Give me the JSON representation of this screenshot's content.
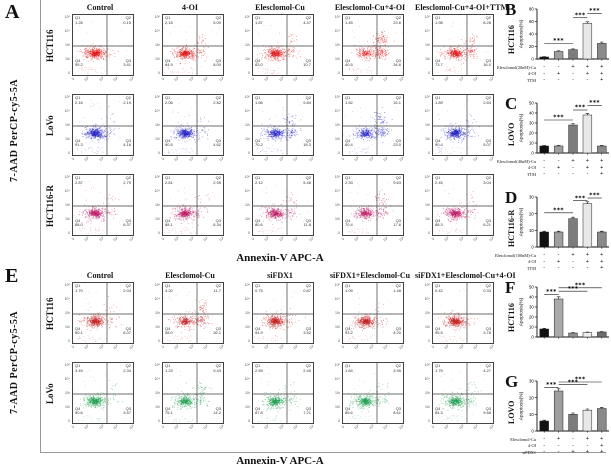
{
  "flow_axis": {
    "x": [
      "0",
      "10²",
      "10³",
      "10⁴",
      "10⁵"
    ],
    "y": [
      "10⁵",
      "10⁴",
      "10³",
      "10²",
      "0"
    ]
  },
  "quadrant_names": {
    "q1": "Q1",
    "q2": "Q2",
    "q3": "Q3",
    "q4": "Q4"
  },
  "panelA": {
    "letter": "A",
    "y_label": "7-AAD PerCP-cy5-5A",
    "x_label": "Annexin-V APC-A",
    "columns": [
      "Control",
      "4-OI",
      "Elesclomol-Cu",
      "Elesclomol-Cu+4-OI",
      "Elesclomol-Cu+4-OI+TTM"
    ],
    "rows": [
      {
        "label": "HCT116",
        "color": "#dd1414",
        "plots": [
          {
            "q1": "1.28",
            "q2": "0.15",
            "q3": "3.41",
            "q4": "95.2"
          },
          {
            "q1": "2.16",
            "q2": "5.00",
            "q3": "8.00",
            "q4": "84.9"
          },
          {
            "q1": "1.87",
            "q2": "4.47",
            "q3": "10.7",
            "q4": "83.0"
          },
          {
            "q1": "1.45",
            "q2": "23.6",
            "q3": "34.6",
            "q4": "40.5"
          },
          {
            "q1": "1.98",
            "q2": "8.28",
            "q3": "16.0",
            "q4": "73.7"
          }
        ]
      },
      {
        "label": "LoVo",
        "color": "#2222c4",
        "plots": [
          {
            "q1": "2.16",
            "q2": "2.19",
            "q3": "4.16",
            "q4": "91.3"
          },
          {
            "q1": "2.06",
            "q2": "2.82",
            "q3": "4.62",
            "q4": "90.5"
          },
          {
            "q1": "1.66",
            "q2": "9.84",
            "q3": "18.3",
            "q4": "70.2"
          },
          {
            "q1": "1.52",
            "q2": "15.1",
            "q3": "23.0",
            "q4": "60.4"
          },
          {
            "q1": "1.89",
            "q2": "2.64",
            "q3": "5.07",
            "q4": "90.4"
          }
        ]
      },
      {
        "label": "HCT116-R",
        "color": "#bc1a66",
        "plots": [
          {
            "q1": "2.87",
            "q2": "2.79",
            "q3": "6.37",
            "q4": "88.0"
          },
          {
            "q1": "2.61",
            "q2": "2.95",
            "q3": "6.34",
            "q4": "88.1"
          },
          {
            "q1": "2.12",
            "q2": "5.46",
            "q3": "11.8",
            "q4": "80.6"
          },
          {
            "q1": "2.33",
            "q2": "9.63",
            "q3": "17.6",
            "q4": "70.4"
          },
          {
            "q1": "2.45",
            "q2": "3.04",
            "q3": "6.21",
            "q4": "88.3"
          }
        ]
      }
    ]
  },
  "panelE": {
    "letter": "E",
    "y_label": "7-AAD PerCP-cy5-5A",
    "x_label": "Annexin-V APC-A",
    "columns": [
      "Control",
      "Elesclomol-Cu",
      "siFDX1",
      "siFDX1+Elesclomol-Cu",
      "siFDX1+Elesclomol-Cu+4-OI"
    ],
    "rows": [
      {
        "label": "HCT116",
        "color": "#c42020",
        "plots": [
          {
            "q1": "1.70",
            "q2": "2.04",
            "q3": "6.07",
            "q4": "90.1"
          },
          {
            "q1": "4.20",
            "q2": "11.7",
            "q3": "26.1",
            "q4": "58.0"
          },
          {
            "q1": "0.75",
            "q2": "0.87",
            "q3": "3.52",
            "q4": "94.9"
          },
          {
            "q1": "1.09",
            "q2": "1.48",
            "q3": "4.20",
            "q4": "93.2"
          },
          {
            "q1": "0.42",
            "q2": "0.33",
            "q3": "3.78",
            "q4": "95.5"
          }
        ]
      },
      {
        "label": "LoVo",
        "color": "#1f9e4e",
        "plots": [
          {
            "q1": "3.49",
            "q2": "2.34",
            "q3": "3.57",
            "q4": "90.6"
          },
          {
            "q1": "1.23",
            "q2": "9.43",
            "q3": "14.2",
            "q4": "75.1"
          },
          {
            "q1": "2.59",
            "q2": "2.40",
            "q3": "7.21",
            "q4": "87.8"
          },
          {
            "q1": "1.84",
            "q2": "3.95",
            "q3": "8.61",
            "q4": "85.6"
          },
          {
            "q1": "1.75",
            "q2": "4.27",
            "q3": "9.68",
            "q4": "84.3"
          }
        ]
      }
    ]
  },
  "chart_data": [
    {
      "panel": "B",
      "type": "bar",
      "cell_line": "HCT116",
      "ylabel": "Apoptosis(%)",
      "ylim": [
        0,
        80
      ],
      "yticks": [
        0,
        20,
        40,
        60,
        80
      ],
      "values": [
        3.2,
        12,
        15,
        57,
        25
      ],
      "errors": [
        0.5,
        1.2,
        1.2,
        2.5,
        2.2
      ],
      "bar_colors": [
        "#111111",
        "#9e9e9e",
        "#7c7c7c",
        "#e8e8e8",
        "#8a8a8a"
      ],
      "sig": [
        {
          "from": 0,
          "to": 2,
          "y": 25,
          "label": "***"
        },
        {
          "from": 2,
          "to": 3,
          "y": 66,
          "label": "***"
        },
        {
          "from": 3,
          "to": 4,
          "y": 73,
          "label": "***"
        }
      ],
      "conditions": {
        "rows": [
          {
            "label": "Elesclomol(20nM)-Cu",
            "signs": [
              "-",
              "-",
              "+",
              "+",
              "+"
            ]
          },
          {
            "label": "4-OI",
            "signs": [
              "-",
              "+",
              "-",
              "+",
              "+"
            ]
          },
          {
            "label": "TTM",
            "signs": [
              "-",
              "-",
              "-",
              "-",
              "+"
            ]
          }
        ]
      }
    },
    {
      "panel": "C",
      "type": "bar",
      "cell_line": "LOVO",
      "ylabel": "Apoptosis(%)",
      "ylim": [
        0,
        50
      ],
      "yticks": [
        0,
        10,
        20,
        30,
        40,
        50
      ],
      "values": [
        7,
        7,
        28,
        38,
        7
      ],
      "errors": [
        0.6,
        0.6,
        1.5,
        1.6,
        0.6
      ],
      "bar_colors": [
        "#111111",
        "#9e9e9e",
        "#7c7c7c",
        "#e8e8e8",
        "#8a8a8a"
      ],
      "sig": [
        {
          "from": 0,
          "to": 2,
          "y": 33,
          "label": "***"
        },
        {
          "from": 2,
          "to": 3,
          "y": 43,
          "label": "***"
        },
        {
          "from": 3,
          "to": 4,
          "y": 47.5,
          "label": "***"
        }
      ],
      "conditions": {
        "rows": [
          {
            "label": "Elesclomol(40nM)-Cu",
            "signs": [
              "-",
              "-",
              "+",
              "+",
              "+"
            ]
          },
          {
            "label": "4-OI",
            "signs": [
              "-",
              "+",
              "-",
              "+",
              "+"
            ]
          },
          {
            "label": "TTM",
            "signs": [
              "-",
              "-",
              "-",
              "-",
              "+"
            ]
          }
        ]
      }
    },
    {
      "panel": "D",
      "type": "bar",
      "cell_line": "HCT116-R",
      "ylabel": "Apoptosis(%)",
      "ylim": [
        0,
        30
      ],
      "yticks": [
        0,
        10,
        20,
        30
      ],
      "values": [
        9,
        9,
        17,
        26,
        9
      ],
      "errors": [
        0.5,
        0.5,
        0.9,
        1.1,
        0.5
      ],
      "bar_colors": [
        "#111111",
        "#9e9e9e",
        "#7c7c7c",
        "#e8e8e8",
        "#8a8a8a"
      ],
      "sig": [
        {
          "from": 0,
          "to": 2,
          "y": 20.5,
          "label": "***"
        },
        {
          "from": 2,
          "to": 3,
          "y": 27.8,
          "label": "***"
        },
        {
          "from": 3,
          "to": 4,
          "y": 29.4,
          "label": "***"
        }
      ],
      "conditions": {
        "rows": [
          {
            "label": "Elesclomol(100nM)-Cu",
            "signs": [
              "-",
              "-",
              "+",
              "+",
              "+"
            ]
          },
          {
            "label": "4-OI",
            "signs": [
              "-",
              "+",
              "-",
              "+",
              "+"
            ]
          },
          {
            "label": "TTM",
            "signs": [
              "-",
              "-",
              "-",
              "-",
              "+"
            ]
          }
        ]
      }
    },
    {
      "panel": "F",
      "type": "bar",
      "cell_line": "HCT116",
      "ylabel": "Apoptosis(%)",
      "ylim": [
        0,
        50
      ],
      "yticks": [
        0,
        10,
        20,
        30,
        40,
        50
      ],
      "values": [
        8,
        38,
        4,
        4.5,
        5
      ],
      "errors": [
        0.7,
        2.2,
        0.5,
        0.5,
        0.5
      ],
      "bar_colors": [
        "#111111",
        "#a9a9a9",
        "#8f8f8f",
        "#ededed",
        "#6f6f6f"
      ],
      "sig": [
        {
          "from": 0,
          "to": 1,
          "y": 42.5,
          "label": "***"
        },
        {
          "from": 1,
          "to": 3,
          "y": 45.8,
          "label": "***"
        },
        {
          "from": 1,
          "to": 4,
          "y": 49.2,
          "label": "***"
        }
      ]
    },
    {
      "panel": "G",
      "type": "bar",
      "cell_line": "LOVO",
      "ylabel": "Apoptosis(%)",
      "ylim": [
        0,
        30
      ],
      "yticks": [
        0,
        10,
        20,
        30
      ],
      "values": [
        6,
        24,
        10,
        12.5,
        13.5
      ],
      "errors": [
        0.5,
        1.3,
        0.8,
        0.7,
        0.7
      ],
      "bar_colors": [
        "#111111",
        "#9e9e9e",
        "#7c7c7c",
        "#e8e8e8",
        "#8a8a8a"
      ],
      "sig": [
        {
          "from": 0,
          "to": 1,
          "y": 26.2,
          "label": "***"
        },
        {
          "from": 1,
          "to": 3,
          "y": 27.8,
          "label": "***"
        },
        {
          "from": 1,
          "to": 4,
          "y": 29.4,
          "label": "***"
        }
      ],
      "conditions": {
        "rows": [
          {
            "label": "Elesclomol-Cu",
            "signs": [
              "-",
              "+",
              "-",
              "+",
              "+"
            ]
          },
          {
            "label": "4-OI",
            "signs": [
              "-",
              "-",
              "-",
              "-",
              "+"
            ]
          },
          {
            "label": "siFDX1",
            "signs": [
              "-",
              "-",
              "+",
              "+",
              "+"
            ]
          }
        ]
      }
    }
  ]
}
